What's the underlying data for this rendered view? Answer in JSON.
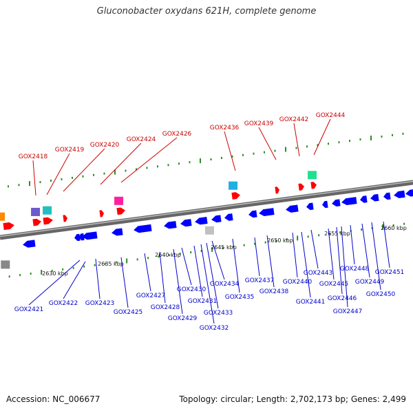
{
  "title": "Gluconobacter oxydans 621H, complete genome",
  "footer": {
    "accession": "Accession: NC_006677",
    "summary": "Topology: circular; Length: 2,702,173 bp; Genes: 2,499"
  },
  "colors": {
    "background": "#ffffff",
    "backbone": "#888888",
    "tick": "#2e8b22",
    "forward_gene": "#ff0000",
    "reverse_gene": "#0000ff",
    "label_forward": "#cc0000",
    "label_reverse": "#0000cc",
    "scale_text": "#111111"
  },
  "scale": {
    "unit": "kbp",
    "labels": [
      "2630 kbp",
      "2635 kbp",
      "2640 kbp",
      "2645 kbp",
      "2650 kbp",
      "2655 kbp",
      "2660 kbp"
    ]
  },
  "genes": {
    "forward_labeled": [
      "GOX2418",
      "GOX2419",
      "GOX2420",
      "GOX2424",
      "GOX2426",
      "GOX2436",
      "GOX2439",
      "GOX2442",
      "GOX2444"
    ],
    "reverse_labeled": [
      "GOX2421",
      "GOX2422",
      "GOX2423",
      "GOX2425",
      "GOX2427",
      "GOX2428",
      "GOX2429",
      "GOX2430",
      "GOX2431",
      "GOX2432",
      "GOX2433",
      "GOX2434",
      "GOX2435",
      "GOX2437",
      "GOX2438",
      "GOX2440",
      "GOX2441",
      "GOX2443",
      "GOX2445",
      "GOX2446",
      "GOX2447",
      "GOX2448",
      "GOX2449",
      "GOX2450",
      "GOX2451"
    ]
  },
  "feature_colors": [
    "#6a5acd",
    "#20c0c0",
    "#ff8800",
    "#ff20a0",
    "#1eb0e0",
    "#20e090",
    "#c0c0c0",
    "#888888"
  ]
}
